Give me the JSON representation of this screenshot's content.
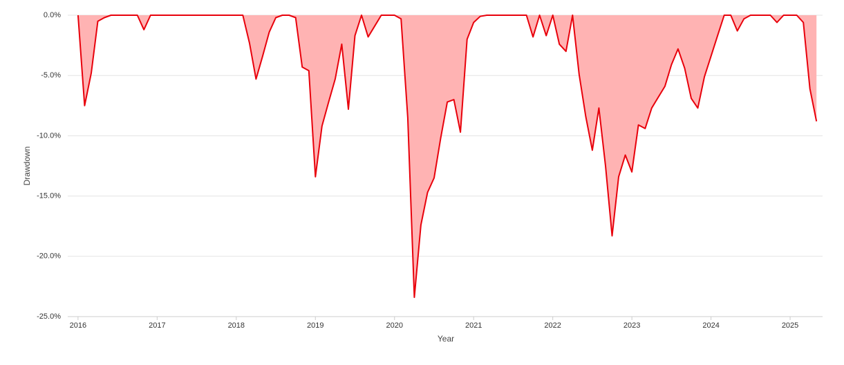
{
  "chart_data": {
    "type": "area",
    "x_label": "Year",
    "y_label": "Drawdown",
    "x": [
      2016,
      2016.083,
      2016.167,
      2016.25,
      2016.333,
      2016.417,
      2016.5,
      2016.583,
      2016.667,
      2016.75,
      2016.833,
      2016.917,
      2017,
      2017.083,
      2017.167,
      2017.25,
      2017.333,
      2017.417,
      2017.5,
      2017.583,
      2017.667,
      2017.75,
      2017.833,
      2017.917,
      2018,
      2018.083,
      2018.167,
      2018.25,
      2018.333,
      2018.417,
      2018.5,
      2018.583,
      2018.667,
      2018.75,
      2018.833,
      2018.917,
      2019,
      2019.083,
      2019.167,
      2019.25,
      2019.333,
      2019.417,
      2019.5,
      2019.583,
      2019.667,
      2019.75,
      2019.833,
      2019.917,
      2020,
      2020.083,
      2020.167,
      2020.25,
      2020.333,
      2020.417,
      2020.5,
      2020.583,
      2020.667,
      2020.75,
      2020.833,
      2020.917,
      2021,
      2021.083,
      2021.167,
      2021.25,
      2021.333,
      2021.417,
      2021.5,
      2021.583,
      2021.667,
      2021.75,
      2021.833,
      2021.917,
      2022,
      2022.083,
      2022.167,
      2022.25,
      2022.333,
      2022.417,
      2022.5,
      2022.583,
      2022.667,
      2022.75,
      2022.833,
      2022.917,
      2023,
      2023.083,
      2023.167,
      2023.25,
      2023.333,
      2023.417,
      2023.5,
      2023.583,
      2023.667,
      2023.75,
      2023.833,
      2023.917,
      2024,
      2024.083,
      2024.167,
      2024.25,
      2024.333,
      2024.417,
      2024.5,
      2024.583,
      2024.667,
      2024.75,
      2024.833,
      2024.917,
      2025,
      2025.083,
      2025.167,
      2025.25,
      2025.333
    ],
    "values": [
      0,
      -7.5,
      -4.8,
      -0.5,
      -0.2,
      0,
      0,
      0,
      0,
      0,
      -1.2,
      0,
      0,
      0,
      0,
      0,
      0,
      0,
      0,
      0,
      0,
      0,
      0,
      0,
      0,
      0,
      -2.3,
      -5.3,
      -3.4,
      -1.4,
      -0.2,
      0,
      0,
      -0.2,
      -4.3,
      -4.6,
      -13.4,
      -9.2,
      -7.2,
      -5.3,
      -2.4,
      -7.8,
      -1.7,
      0,
      -1.8,
      -0.9,
      0,
      0,
      0,
      -0.3,
      -8.5,
      -23.4,
      -17.4,
      -14.7,
      -13.5,
      -10.2,
      -7.2,
      -7.0,
      -9.7,
      -2.0,
      -0.6,
      -0.1,
      0,
      0,
      0,
      0,
      0,
      0,
      0,
      -1.8,
      0,
      -1.7,
      0,
      -2.4,
      -3.0,
      0,
      -4.9,
      -8.4,
      -11.2,
      -7.7,
      -12.5,
      -18.3,
      -13.4,
      -11.6,
      -13.0,
      -9.1,
      -9.4,
      -7.7,
      -6.8,
      -5.9,
      -4.1,
      -2.8,
      -4.4,
      -6.9,
      -7.7,
      -5.1,
      -3.4,
      -1.7,
      0,
      0,
      -1.3,
      -0.3,
      0,
      0,
      0,
      0,
      -0.6,
      0,
      0,
      0,
      -0.6,
      -6.1,
      -8.8
    ],
    "color": "#e8000b",
    "fill_color": "#ffb3b3",
    "xlim": [
      2015.87,
      2025.41
    ],
    "xticks": [
      2016,
      2017,
      2018,
      2019,
      2020,
      2021,
      2022,
      2023,
      2024,
      2025
    ],
    "ylim": [
      -25,
      0
    ],
    "yticks": [
      {
        "value": 0,
        "label": "0.0%"
      },
      {
        "value": -5,
        "label": "-5.0%"
      },
      {
        "value": -10,
        "label": "-10.0%"
      },
      {
        "value": -15,
        "label": "-15.0%"
      },
      {
        "value": -20,
        "label": "-20.0%"
      },
      {
        "value": -25,
        "label": "-25.0%"
      }
    ],
    "grid": true
  }
}
